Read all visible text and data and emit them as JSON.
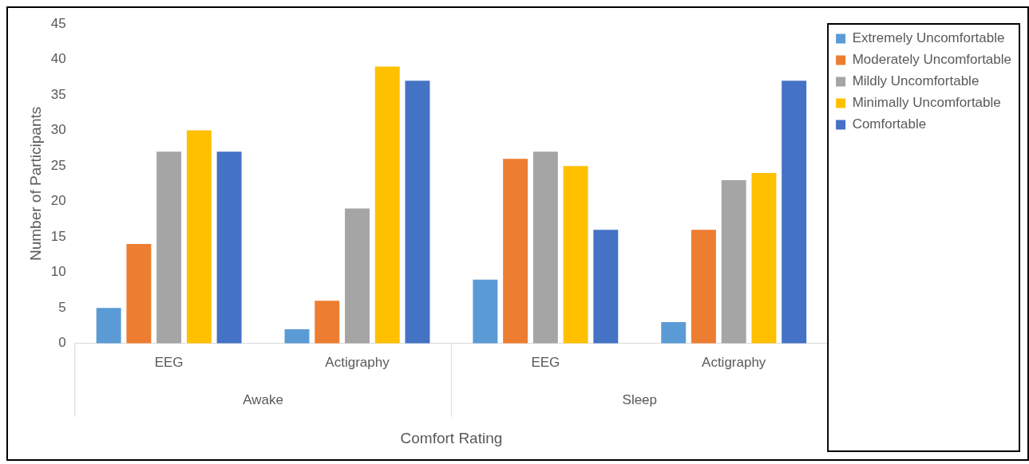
{
  "chart_data": {
    "type": "bar",
    "xlabel": "Comfort Rating",
    "ylabel": "Number of Participants",
    "categories": [
      "EEG",
      "Actigraphy",
      "EEG",
      "Actigraphy"
    ],
    "series": [
      {
        "name": "Extremely Uncomfortable",
        "color": "#5b9bd5",
        "values": [
          5,
          2,
          9,
          3
        ]
      },
      {
        "name": "Moderately Uncomfortable",
        "color": "#ed7d31",
        "values": [
          14,
          6,
          26,
          16
        ]
      },
      {
        "name": "Mildly Uncomfortable",
        "color": "#a5a5a5",
        "values": [
          27,
          19,
          27,
          23
        ]
      },
      {
        "name": "Minimally Uncomfortable",
        "color": "#ffc000",
        "values": [
          30,
          39,
          25,
          24
        ]
      },
      {
        "name": "Comfortable",
        "color": "#4472c4",
        "values": [
          27,
          37,
          16,
          37
        ]
      }
    ],
    "annotations": [
      "Awake",
      "Sleep"
    ],
    "ylim": [
      0,
      45
    ],
    "yticks": [
      0,
      5,
      10,
      15,
      20,
      25,
      30,
      35,
      40,
      45
    ],
    "grid": false,
    "legend": "top right"
  }
}
